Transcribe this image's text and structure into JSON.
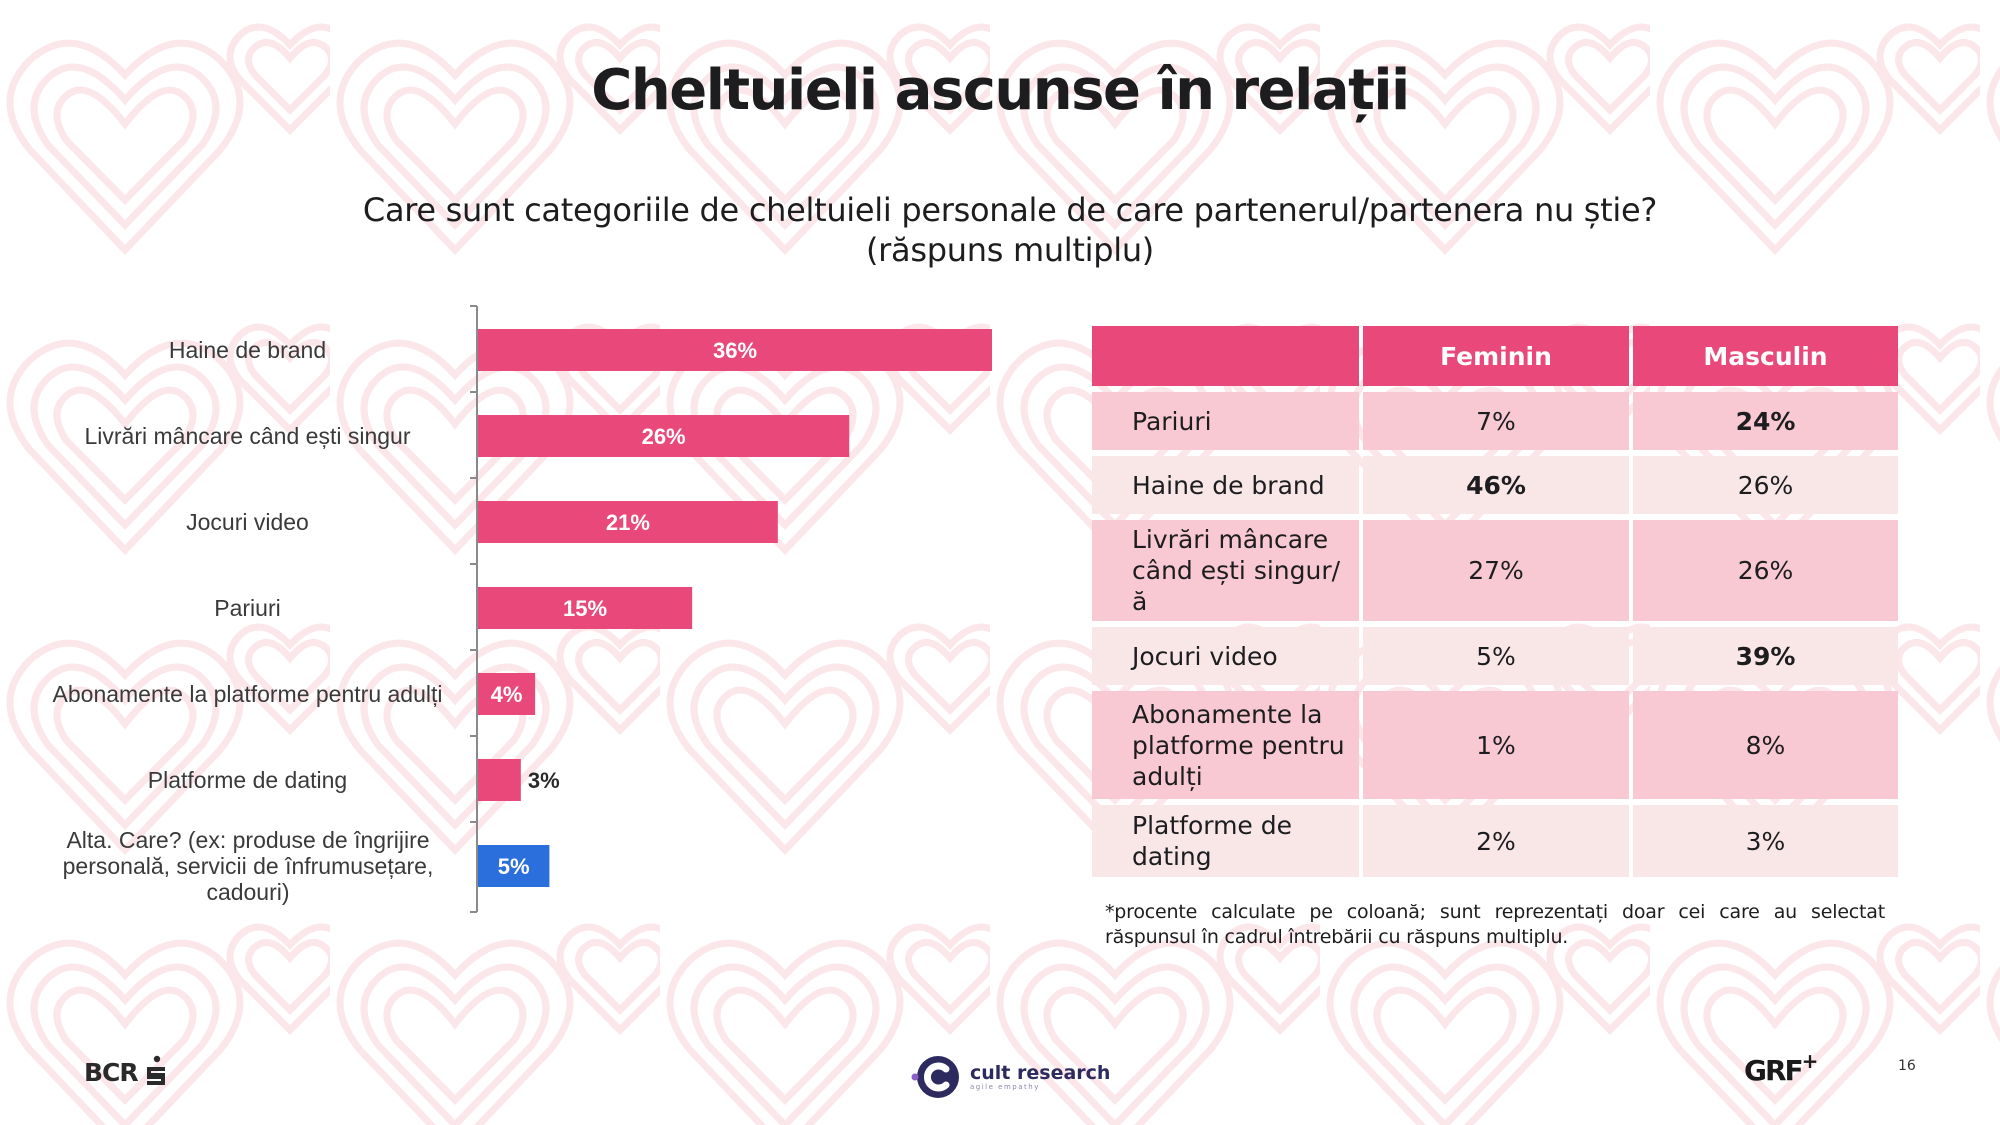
{
  "slide": {
    "title": "Cheltuieli ascunse în relații",
    "subtitle_line1": "Care sunt categoriile de cheltuieli personale de care partenerul/partenera nu știe?",
    "subtitle_line2": "(răspuns multiplu)",
    "page_number": "16"
  },
  "colors": {
    "accent_pink": "#e8497a",
    "other_blue": "#2a6fdb",
    "row_dark": "#f8c9d3",
    "row_light": "#f9e7e8",
    "background_pattern": "#fbe9ec"
  },
  "chart_data": {
    "type": "bar",
    "orientation": "horizontal",
    "title": "Care sunt categoriile de cheltuieli personale de care partenerul/partenera nu știe? (răspuns multiplu)",
    "xlabel": "",
    "ylabel": "",
    "unit": "%",
    "xlim": [
      0,
      36
    ],
    "grid": false,
    "legend": "none",
    "categories": [
      "Haine de brand",
      "Livrări mâncare când ești singur",
      "Jocuri video",
      "Pariuri",
      "Abonamente la platforme pentru adulți",
      "Platforme de dating",
      "Alta. Care? (ex: produse de îngrijire personală, servicii de înfrumusețare, cadouri)"
    ],
    "values": [
      36,
      26,
      21,
      15,
      4,
      3,
      5
    ],
    "data_labels": [
      "36%",
      "26%",
      "21%",
      "15%",
      "4%",
      "3%",
      "5%"
    ],
    "bar_colors": [
      "#e8497a",
      "#e8497a",
      "#e8497a",
      "#e8497a",
      "#e8497a",
      "#e8497a",
      "#2a6fdb"
    ],
    "label_inside": [
      true,
      true,
      true,
      true,
      true,
      false,
      true
    ]
  },
  "table": {
    "headers": [
      "",
      "Feminin",
      "Masculin"
    ],
    "rows": [
      {
        "label": "Pariuri",
        "feminin": "7%",
        "masculin": "24%",
        "bold": "masculin",
        "shade": "dark"
      },
      {
        "label": "Haine de brand",
        "feminin": "46%",
        "masculin": "26%",
        "bold": "feminin",
        "shade": "light"
      },
      {
        "label": "Livrări mâncare când ești singur/ă",
        "feminin": "27%",
        "masculin": "26%",
        "bold": "",
        "shade": "dark"
      },
      {
        "label": "Jocuri video",
        "feminin": "5%",
        "masculin": "39%",
        "bold": "masculin",
        "shade": "light"
      },
      {
        "label": "Abonamente la platforme pentru adulți",
        "feminin": "1%",
        "masculin": "8%",
        "bold": "",
        "shade": "dark"
      },
      {
        "label": "Platforme de dating",
        "feminin": "2%",
        "masculin": "3%",
        "bold": "",
        "shade": "light"
      }
    ],
    "footnote": "*procente calculate pe coloană; sunt reprezentați doar cei care au selectat răspunsul în cadrul întrebării cu răspuns multiplu."
  },
  "footer": {
    "bcr_logo_text": "BCR",
    "bcr_icon": "erste-s-icon",
    "cult_logo_name": "cult research",
    "cult_logo_tagline": "agile empathy",
    "grf_logo_text": "GRF",
    "grf_logo_plus": "+"
  }
}
